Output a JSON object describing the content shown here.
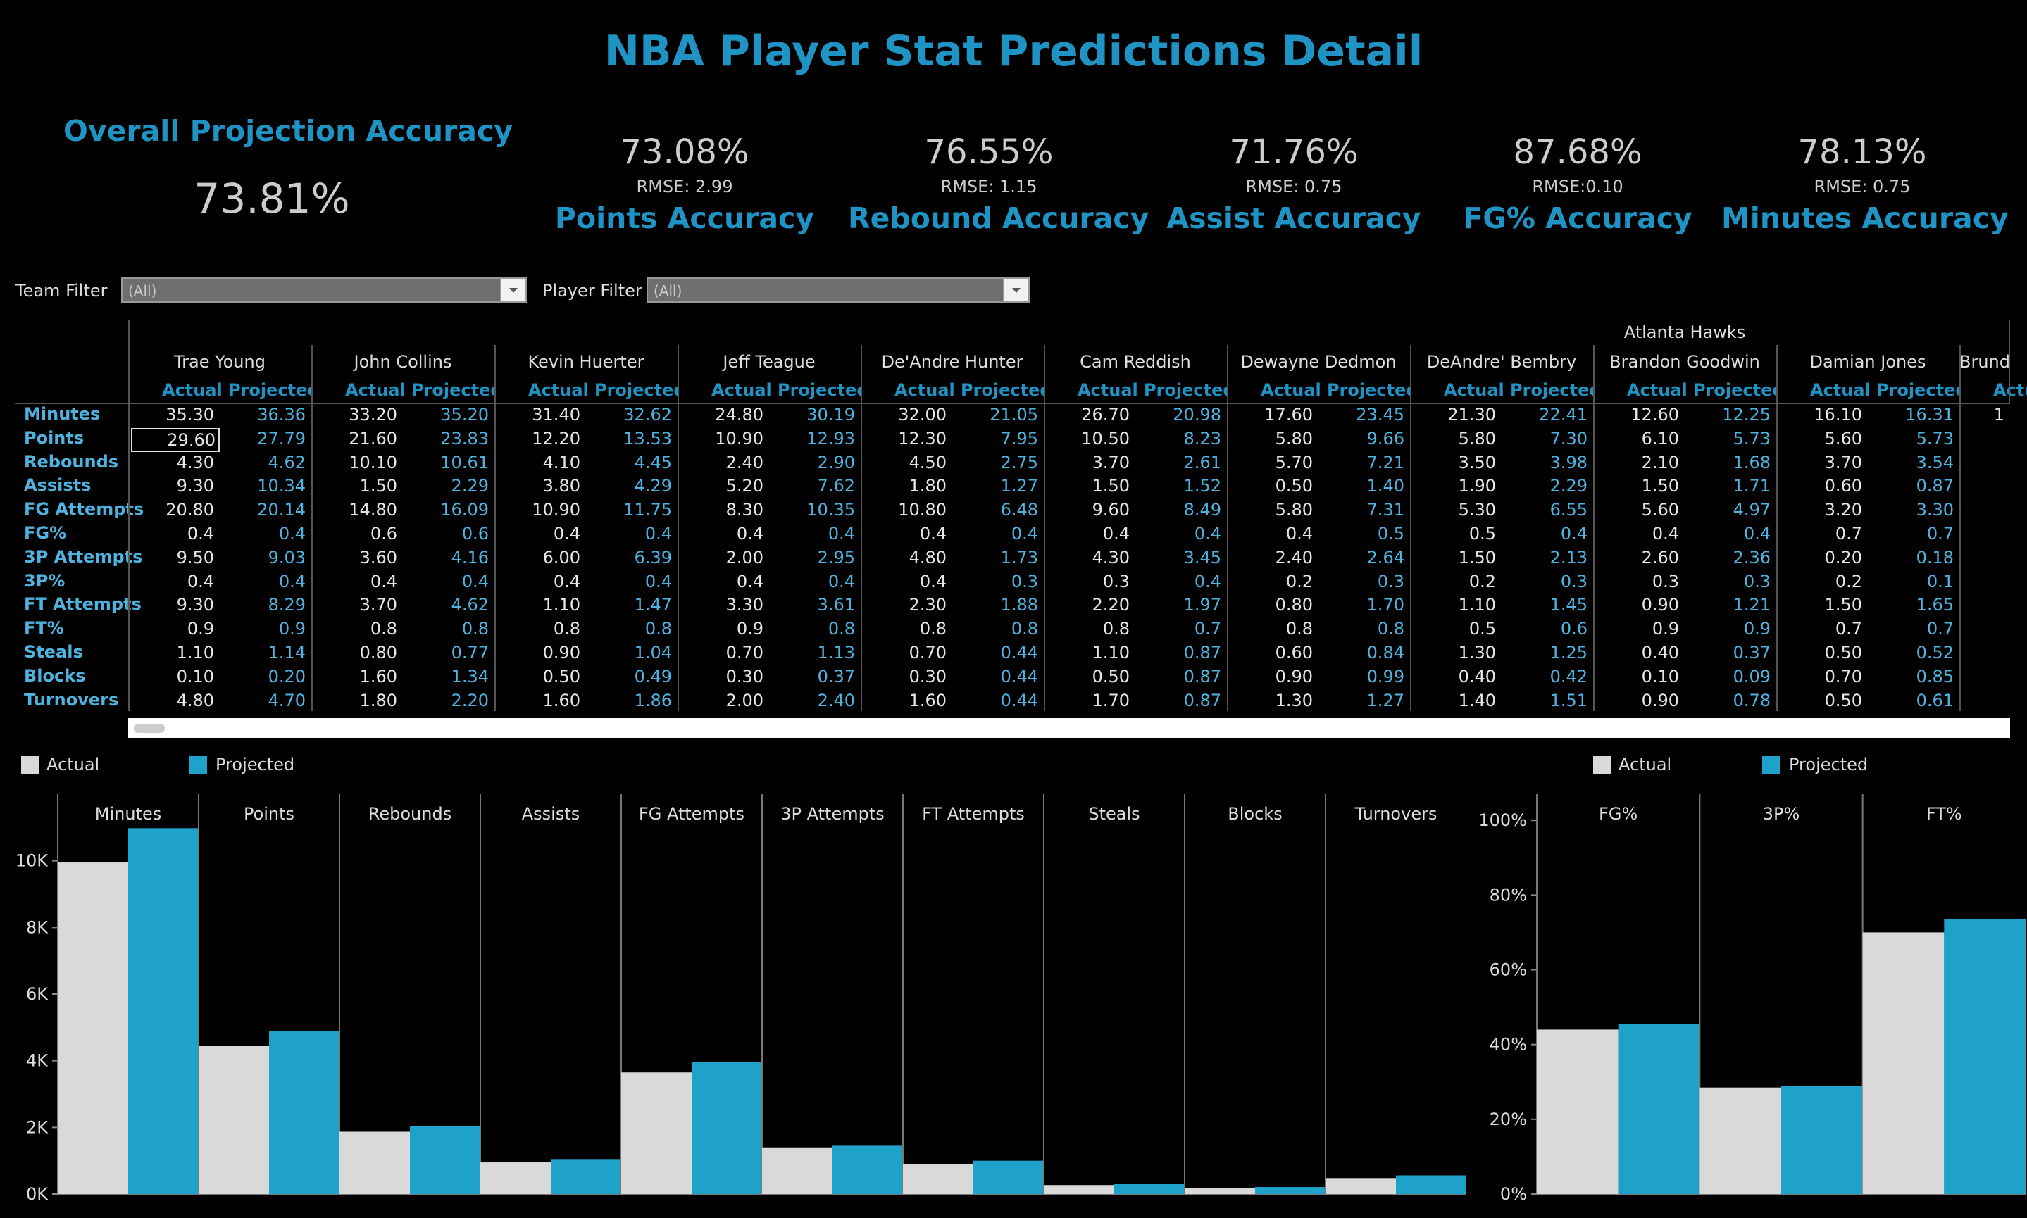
{
  "title": "NBA Player Stat Predictions Detail",
  "overall": {
    "label": "Overall Projection Accuracy",
    "value": "73.81%"
  },
  "kpis": [
    {
      "value": "73.08%",
      "rmse": "RMSE: 2.99",
      "label": "Points Accuracy"
    },
    {
      "value": "76.55%",
      "rmse": "RMSE: 1.15",
      "label": "Rebound Accuracy"
    },
    {
      "value": "71.76%",
      "rmse": "RMSE: 0.75",
      "label": "Assist Accuracy"
    },
    {
      "value": "87.68%",
      "rmse": "RMSE:0.10",
      "label": "FG% Accuracy"
    },
    {
      "value": "78.13%",
      "rmse": "RMSE: 0.75",
      "label": "Minutes Accuracy"
    }
  ],
  "filters": {
    "team_label": "Team Filter",
    "team_value": "(All)",
    "player_label": "Player Filter",
    "player_value": "(All)"
  },
  "table": {
    "team": "Atlanta Hawks",
    "actual_header": "Actual",
    "projected_header": "Projected",
    "row_labels": [
      "Minutes",
      "Points",
      "Rebounds",
      "Assists",
      "FG Attempts",
      "FG%",
      "3P Attempts",
      "3P%",
      "FT Attempts",
      "FT%",
      "Steals",
      "Blocks",
      "Turnovers"
    ],
    "players": [
      {
        "name": "Trae Young",
        "actual": [
          "35.30",
          "29.60",
          "4.30",
          "9.30",
          "20.80",
          "0.4",
          "9.50",
          "0.4",
          "9.30",
          "0.9",
          "1.10",
          "0.10",
          "4.80"
        ],
        "projected": [
          "36.36",
          "27.79",
          "4.62",
          "10.34",
          "20.14",
          "0.4",
          "9.03",
          "0.4",
          "8.29",
          "0.9",
          "1.14",
          "0.20",
          "4.70"
        ]
      },
      {
        "name": "John Collins",
        "actual": [
          "33.20",
          "21.60",
          "10.10",
          "1.50",
          "14.80",
          "0.6",
          "3.60",
          "0.4",
          "3.70",
          "0.8",
          "0.80",
          "1.60",
          "1.80"
        ],
        "projected": [
          "35.20",
          "23.83",
          "10.61",
          "2.29",
          "16.09",
          "0.6",
          "4.16",
          "0.4",
          "4.62",
          "0.8",
          "0.77",
          "1.34",
          "2.20"
        ]
      },
      {
        "name": "Kevin Huerter",
        "actual": [
          "31.40",
          "12.20",
          "4.10",
          "3.80",
          "10.90",
          "0.4",
          "6.00",
          "0.4",
          "1.10",
          "0.8",
          "0.90",
          "0.50",
          "1.60"
        ],
        "projected": [
          "32.62",
          "13.53",
          "4.45",
          "4.29",
          "11.75",
          "0.4",
          "6.39",
          "0.4",
          "1.47",
          "0.8",
          "1.04",
          "0.49",
          "1.86"
        ]
      },
      {
        "name": "Jeff Teague",
        "actual": [
          "24.80",
          "10.90",
          "2.40",
          "5.20",
          "8.30",
          "0.4",
          "2.00",
          "0.4",
          "3.30",
          "0.9",
          "0.70",
          "0.30",
          "2.00"
        ],
        "projected": [
          "30.19",
          "12.93",
          "2.90",
          "7.62",
          "10.35",
          "0.4",
          "2.95",
          "0.4",
          "3.61",
          "0.8",
          "1.13",
          "0.37",
          "2.40"
        ]
      },
      {
        "name": "De'Andre Hunter",
        "actual": [
          "32.00",
          "12.30",
          "4.50",
          "1.80",
          "10.80",
          "0.4",
          "4.80",
          "0.4",
          "2.30",
          "0.8",
          "0.70",
          "0.30",
          "1.60"
        ],
        "projected": [
          "21.05",
          "7.95",
          "2.75",
          "1.27",
          "6.48",
          "0.4",
          "1.73",
          "0.3",
          "1.88",
          "0.8",
          "0.44",
          "0.44",
          "0.44"
        ]
      },
      {
        "name": "Cam Reddish",
        "actual": [
          "26.70",
          "10.50",
          "3.70",
          "1.50",
          "9.60",
          "0.4",
          "4.30",
          "0.3",
          "2.20",
          "0.8",
          "1.10",
          "0.50",
          "1.70"
        ],
        "projected": [
          "20.98",
          "8.23",
          "2.61",
          "1.52",
          "8.49",
          "0.4",
          "3.45",
          "0.4",
          "1.97",
          "0.7",
          "0.87",
          "0.87",
          "0.87"
        ]
      },
      {
        "name": "Dewayne Dedmon",
        "actual": [
          "17.60",
          "5.80",
          "5.70",
          "0.50",
          "5.80",
          "0.4",
          "2.40",
          "0.2",
          "0.80",
          "0.8",
          "0.60",
          "0.90",
          "1.30"
        ],
        "projected": [
          "23.45",
          "9.66",
          "7.21",
          "1.40",
          "7.31",
          "0.5",
          "2.64",
          "0.3",
          "1.70",
          "0.8",
          "0.84",
          "0.99",
          "1.27"
        ]
      },
      {
        "name": "DeAndre' Bembry",
        "actual": [
          "21.30",
          "5.80",
          "3.50",
          "1.90",
          "5.30",
          "0.5",
          "1.50",
          "0.2",
          "1.10",
          "0.5",
          "1.30",
          "0.40",
          "1.40"
        ],
        "projected": [
          "22.41",
          "7.30",
          "3.98",
          "2.29",
          "6.55",
          "0.4",
          "2.13",
          "0.3",
          "1.45",
          "0.6",
          "1.25",
          "0.42",
          "1.51"
        ]
      },
      {
        "name": "Brandon Goodwin",
        "actual": [
          "12.60",
          "6.10",
          "2.10",
          "1.50",
          "5.60",
          "0.4",
          "2.60",
          "0.3",
          "0.90",
          "0.9",
          "0.40",
          "0.10",
          "0.90"
        ],
        "projected": [
          "12.25",
          "5.73",
          "1.68",
          "1.71",
          "4.97",
          "0.4",
          "2.36",
          "0.3",
          "1.21",
          "0.9",
          "0.37",
          "0.09",
          "0.78"
        ]
      },
      {
        "name": "Damian Jones",
        "actual": [
          "16.10",
          "5.60",
          "3.70",
          "0.60",
          "3.20",
          "0.7",
          "0.20",
          "0.2",
          "1.50",
          "0.7",
          "0.50",
          "0.70",
          "0.50"
        ],
        "projected": [
          "16.31",
          "5.73",
          "3.54",
          "0.87",
          "3.30",
          "0.7",
          "0.18",
          "0.1",
          "1.65",
          "0.7",
          "0.52",
          "0.85",
          "0.61"
        ]
      },
      {
        "name": "Brund",
        "actual": [
          "1"
        ],
        "projected": [],
        "partial": true,
        "projected_header": "Actua"
      }
    ]
  },
  "legend": {
    "actual": "Actual",
    "projected": "Projected"
  },
  "colors": {
    "actual": "#d9d9d9",
    "projected": "#1fa2c9",
    "accent": "#1f94c4"
  },
  "chart_data": [
    {
      "type": "bar",
      "categories": [
        "Minutes",
        "Points",
        "Rebounds",
        "Assists",
        "FG Attempts",
        "3P Attempts",
        "FT Attempts",
        "Steals",
        "Blocks",
        "Turnovers"
      ],
      "series": [
        {
          "name": "Actual",
          "values": [
            9950,
            4450,
            1870,
            950,
            3650,
            1400,
            900,
            270,
            170,
            480
          ]
        },
        {
          "name": "Projected",
          "values": [
            10980,
            4900,
            2030,
            1050,
            3970,
            1450,
            1000,
            310,
            210,
            560
          ]
        }
      ],
      "yticks": [
        "0K",
        "2K",
        "4K",
        "6K",
        "8K",
        "10K"
      ],
      "ylim": [
        0,
        12000
      ]
    },
    {
      "type": "bar",
      "categories": [
        "FG%",
        "3P%",
        "FT%"
      ],
      "series": [
        {
          "name": "Actual",
          "values": [
            0.44,
            0.285,
            0.7
          ]
        },
        {
          "name": "Projected",
          "values": [
            0.455,
            0.29,
            0.735
          ]
        }
      ],
      "yticks": [
        "0%",
        "20%",
        "40%",
        "60%",
        "80%",
        "100%"
      ],
      "ylim": [
        0,
        1.07
      ]
    }
  ]
}
